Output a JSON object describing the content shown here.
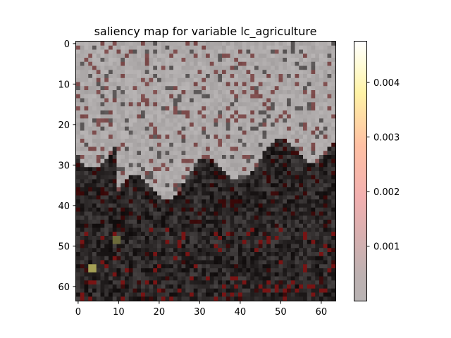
{
  "chart_data": {
    "type": "heatmap",
    "title": "saliency map for variable lc_agriculture",
    "xlabel": "",
    "ylabel": "",
    "grid_size": [
      64,
      64
    ],
    "x_ticks": [
      0,
      10,
      20,
      30,
      40,
      50,
      60
    ],
    "y_ticks": [
      0,
      10,
      20,
      30,
      40,
      50,
      60
    ],
    "xlim": [
      -0.5,
      63.5
    ],
    "ylim": [
      63.5,
      -0.5
    ],
    "colormap": "hot_r overlaid on grayscale image",
    "colorbar": {
      "ticks": [
        0.001,
        0.002,
        0.003,
        0.004
      ],
      "tick_labels": [
        "0.001",
        "0.002",
        "0.003",
        "0.004"
      ],
      "vmin": 0.0,
      "vmax": 0.00475,
      "colors": [
        "#b8b3b3",
        "#bfb2b2",
        "#f0b0b0",
        "#ffc6a8",
        "#ffeaa3",
        "#fffcd8",
        "#ffffff"
      ]
    },
    "grid": false,
    "legend": "none"
  }
}
